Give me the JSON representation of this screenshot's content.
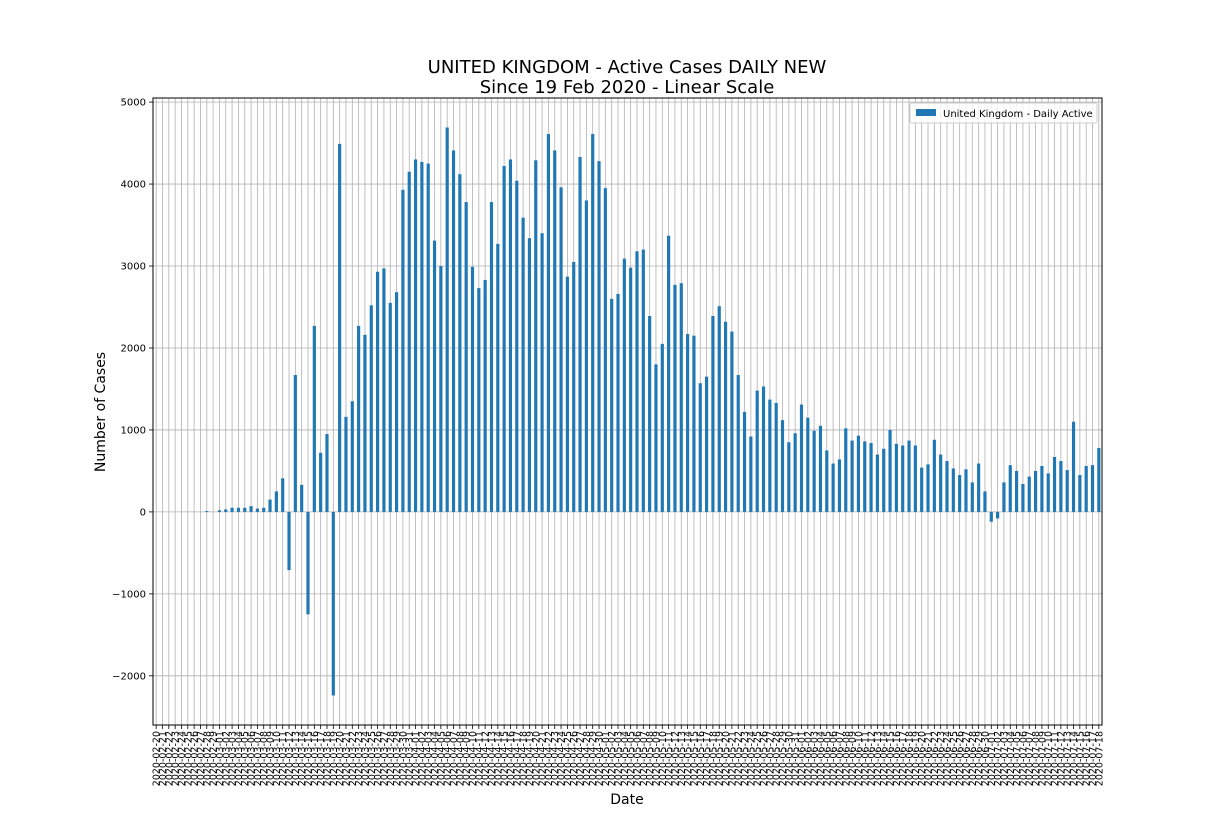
{
  "chart_data": {
    "type": "bar",
    "title": "UNITED KINGDOM - Active Cases DAILY NEW",
    "subtitle": "Since 19 Feb 2020 - Linear Scale",
    "xlabel": "Date",
    "ylabel": "Number of Cases",
    "ylim": [
      -2600,
      5050
    ],
    "yticks": [
      -2000,
      -1000,
      0,
      1000,
      2000,
      3000,
      4000,
      5000
    ],
    "ytick_labels": [
      "−2000",
      "−1000",
      "0",
      "1000",
      "2000",
      "3000",
      "4000",
      "5000"
    ],
    "grid": true,
    "legend_position": "top-right",
    "start_date": "2020-02-20",
    "series": [
      {
        "name": "United Kingdom - Daily Active",
        "color": "#1f77b4",
        "values": [
          0,
          0,
          0,
          0,
          0,
          0,
          0,
          0,
          10,
          0,
          20,
          30,
          50,
          50,
          50,
          70,
          40,
          50,
          150,
          250,
          410,
          -710,
          1670,
          330,
          -1250,
          2270,
          720,
          950,
          -2240,
          4490,
          1160,
          1350,
          2270,
          2160,
          2520,
          2930,
          2970,
          2550,
          2680,
          3930,
          4150,
          4300,
          4270,
          4250,
          3310,
          3000,
          4690,
          4410,
          4120,
          3780,
          2990,
          2730,
          2830,
          3780,
          3270,
          4220,
          4300,
          4040,
          3590,
          3340,
          4290,
          3400,
          4610,
          4410,
          3960,
          2870,
          3050,
          4330,
          3800,
          4610,
          4280,
          3950,
          2600,
          2660,
          3090,
          2980,
          3180,
          3200,
          2390,
          1800,
          2050,
          3370,
          2770,
          2790,
          2170,
          2150,
          1570,
          1650,
          2390,
          2510,
          2320,
          2200,
          1670,
          1220,
          920,
          1480,
          1530,
          1370,
          1330,
          1120,
          850,
          960,
          1310,
          1150,
          990,
          1050,
          750,
          590,
          640,
          1020,
          870,
          930,
          860,
          840,
          700,
          770,
          1000,
          830,
          810,
          870,
          810,
          540,
          580,
          880,
          700,
          620,
          530,
          450,
          520,
          360,
          590,
          250,
          -120,
          -80,
          360,
          570,
          500,
          340,
          430,
          500,
          560,
          470,
          670,
          620,
          510,
          1100,
          450,
          560,
          570,
          780
        ]
      }
    ]
  }
}
